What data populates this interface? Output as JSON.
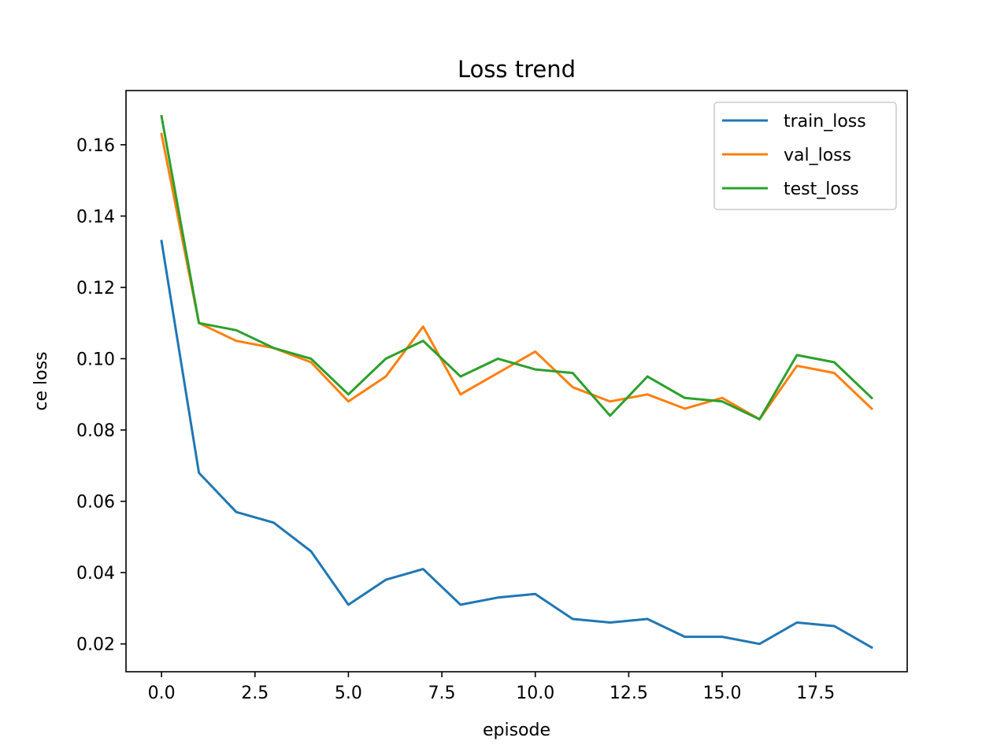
{
  "chart_data": {
    "type": "line",
    "title": "Loss trend",
    "xlabel": "episode",
    "ylabel": "ce loss",
    "x": [
      0,
      1,
      2,
      3,
      4,
      5,
      6,
      7,
      8,
      9,
      10,
      11,
      12,
      13,
      14,
      15,
      16,
      17,
      18,
      19
    ],
    "xlim": [
      -0.95,
      19.95
    ],
    "ylim": [
      0.0122,
      0.1752
    ],
    "xticks": [
      0.0,
      2.5,
      5.0,
      7.5,
      10.0,
      12.5,
      15.0,
      17.5
    ],
    "xtick_labels": [
      "0.0",
      "2.5",
      "5.0",
      "7.5",
      "10.0",
      "12.5",
      "15.0",
      "17.5"
    ],
    "yticks": [
      0.02,
      0.04,
      0.06,
      0.08,
      0.1,
      0.12,
      0.14,
      0.16
    ],
    "ytick_labels": [
      "0.02",
      "0.04",
      "0.06",
      "0.08",
      "0.10",
      "0.12",
      "0.14",
      "0.16"
    ],
    "grid": false,
    "legend_position": "top-right",
    "series": [
      {
        "name": "train_loss",
        "color": "#1f77b4",
        "values": [
          0.133,
          0.068,
          0.057,
          0.054,
          0.046,
          0.031,
          0.038,
          0.041,
          0.031,
          0.033,
          0.034,
          0.027,
          0.026,
          0.027,
          0.022,
          0.022,
          0.02,
          0.026,
          0.025,
          0.019
        ]
      },
      {
        "name": "val_loss",
        "color": "#ff7f0e",
        "values": [
          0.163,
          0.11,
          0.105,
          0.103,
          0.099,
          0.088,
          0.095,
          0.109,
          0.09,
          0.096,
          0.102,
          0.092,
          0.088,
          0.09,
          0.086,
          0.089,
          0.083,
          0.098,
          0.096,
          0.086
        ]
      },
      {
        "name": "test_loss",
        "color": "#2ca02c",
        "values": [
          0.168,
          0.11,
          0.108,
          0.103,
          0.1,
          0.09,
          0.1,
          0.105,
          0.095,
          0.1,
          0.097,
          0.096,
          0.084,
          0.095,
          0.089,
          0.088,
          0.083,
          0.101,
          0.099,
          0.089
        ]
      }
    ]
  }
}
